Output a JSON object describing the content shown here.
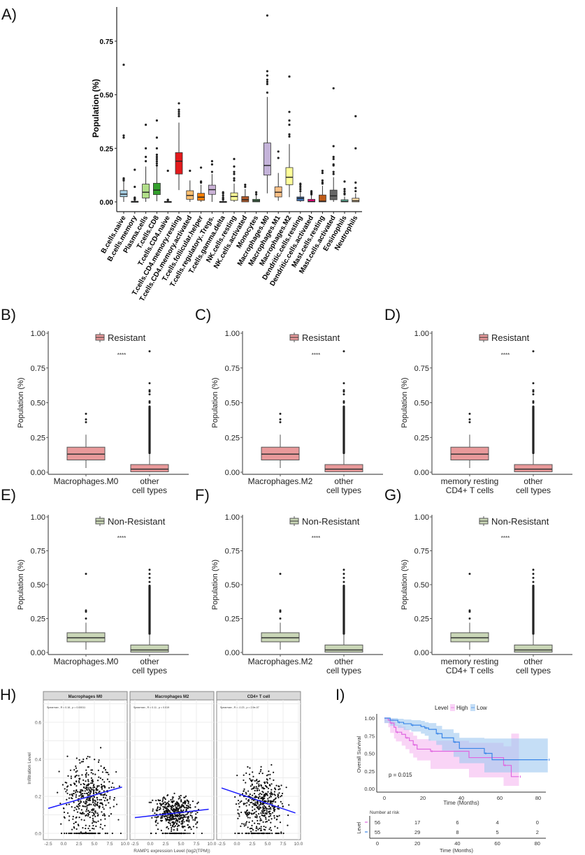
{
  "chart_data": [
    {
      "panel": "A)",
      "type": "box",
      "ylabel": "Population (%)",
      "yticks": [
        "0.00",
        "0.25",
        "0.50",
        "0.75"
      ],
      "ylim": [
        -0.04,
        0.9
      ],
      "categories": [
        {
          "name": "B.cells.naive",
          "color": "#a6cee3",
          "stats": [
            0,
            0.024,
            0.036,
            0.053,
            0.095
          ],
          "outliers": [
            0.64,
            0.31,
            0.3,
            0.11,
            0.105,
            0.1
          ]
        },
        {
          "name": "B.cells.memory",
          "color": "#1f78b4",
          "stats": [
            0,
            0,
            0,
            0.003,
            0.007
          ],
          "outliers": [
            0.15,
            0.07,
            0.02,
            0.018,
            0.015,
            0.01
          ]
        },
        {
          "name": "Plasma.cells",
          "color": "#b2df8a",
          "stats": [
            0,
            0.018,
            0.045,
            0.083,
            0.165
          ],
          "outliers": [
            0.36,
            0.25,
            0.21,
            0.19
          ]
        },
        {
          "name": "T.cells.CD8",
          "color": "#33a02c",
          "stats": [
            0.003,
            0.034,
            0.055,
            0.087,
            0.165
          ],
          "outliers": [
            0.38,
            0.3,
            0.25,
            0.22,
            0.21,
            0.2,
            0.19,
            0.18,
            0.17
          ]
        },
        {
          "name": "T.cells.CD4.naive",
          "color": "#fb9a99",
          "stats": [
            0,
            0,
            0,
            0.002,
            0.004
          ],
          "outliers": [
            0.145,
            0.01,
            0.008
          ]
        },
        {
          "name": "T.cells.CD4.memory.resting",
          "color": "#e31a1c",
          "stats": [
            0.055,
            0.13,
            0.19,
            0.23,
            0.37
          ],
          "outliers": [
            0.46,
            0.43,
            0.42,
            0.41,
            0.4
          ]
        },
        {
          "name": "T.cells.CD4.memory.activated",
          "color": "#fdbf6f",
          "stats": [
            0,
            0.012,
            0.03,
            0.052,
            0.1
          ],
          "outliers": [
            0.145
          ]
        },
        {
          "name": "T.cells.follicular.helper",
          "color": "#ff7f00",
          "stats": [
            0,
            0.007,
            0.022,
            0.04,
            0.08
          ],
          "outliers": [
            0.16,
            0.095,
            0.09
          ]
        },
        {
          "name": "T.cells.regulatory..Tregs.",
          "color": "#cab2d6",
          "stats": [
            0,
            0.035,
            0.057,
            0.078,
            0.13
          ],
          "outliers": [
            0.19,
            0.175,
            0.14
          ]
        },
        {
          "name": "T.cells.gamma.delta",
          "color": "#6a3d9a",
          "stats": [
            0,
            0,
            0,
            0.002,
            0.005
          ],
          "outliers": [
            0.045,
            0.04,
            0.03,
            0.02,
            0.015,
            0.01
          ]
        },
        {
          "name": "NK.cells.resting",
          "color": "#ffff99",
          "stats": [
            0,
            0.007,
            0.025,
            0.042,
            0.085
          ],
          "outliers": [
            0.2,
            0.165,
            0.14,
            0.13,
            0.11,
            0.1
          ]
        },
        {
          "name": "NK.cells.activated",
          "color": "#b15928",
          "stats": [
            0,
            0,
            0.01,
            0.025,
            0.06
          ],
          "outliers": [
            0.08,
            0.07
          ]
        },
        {
          "name": "Monocytes",
          "color": "#4f8f5a",
          "stats": [
            0,
            0,
            0.005,
            0.012,
            0.03
          ],
          "outliers": [
            0.045,
            0.035
          ]
        },
        {
          "name": "Macrophages.M0",
          "color": "#c4b3d9",
          "stats": [
            0.04,
            0.125,
            0.17,
            0.275,
            0.49
          ],
          "outliers": [
            0.87,
            0.61,
            0.59,
            0.57,
            0.56,
            0.55,
            0.51
          ]
        },
        {
          "name": "Macrophages.M1",
          "color": "#fdc086",
          "stats": [
            0.005,
            0.023,
            0.045,
            0.07,
            0.135
          ],
          "outliers": [
            0.235,
            0.205
          ]
        },
        {
          "name": "Macrophages.M2",
          "color": "#ffff99",
          "stats": [
            0.022,
            0.08,
            0.115,
            0.16,
            0.27
          ],
          "outliers": [
            0.585,
            0.42,
            0.38,
            0.36,
            0.315,
            0.305
          ]
        },
        {
          "name": "Dendritic.cells.resting",
          "color": "#386cb0",
          "stats": [
            0,
            0.005,
            0.017,
            0.023,
            0.045
          ],
          "outliers": [
            0.085,
            0.08,
            0.07,
            0.06,
            0.05
          ]
        },
        {
          "name": "Dendritic.cells.activated",
          "color": "#f0027f",
          "stats": [
            0,
            0,
            0.002,
            0.012,
            0.03
          ],
          "outliers": [
            0.05,
            0.045,
            0.04,
            0.035
          ]
        },
        {
          "name": "Mast.cells.resting",
          "color": "#bf5b17",
          "stats": [
            0,
            0,
            0.003,
            0.032,
            0.075
          ],
          "outliers": [
            0.145,
            0.135,
            0.1,
            0.09,
            0.085
          ]
        },
        {
          "name": "Mast.cells.activated",
          "color": "#666666",
          "stats": [
            0,
            0.01,
            0.028,
            0.055,
            0.115
          ],
          "outliers": [
            0.53,
            0.26,
            0.21,
            0.2,
            0.175,
            0.17,
            0.14,
            0.13
          ]
        },
        {
          "name": "Eosinophils",
          "color": "#66c2a5",
          "stats": [
            0,
            0,
            0.002,
            0.01,
            0.025
          ],
          "outliers": [
            0.095,
            0.06,
            0.05,
            0.04,
            0.035
          ]
        },
        {
          "name": "Neutrophils",
          "color": "#fdd9a6",
          "stats": [
            0,
            0,
            0.005,
            0.017,
            0.04
          ],
          "outliers": [
            0.4,
            0.25,
            0.09,
            0.065,
            0.05
          ]
        }
      ]
    },
    {
      "panel": "B)",
      "type": "box",
      "legend": "Resistant",
      "color": "#e8999a",
      "ylabel": "Population (%)",
      "yticks": [
        "0.00",
        "0.25",
        "0.50",
        "0.75",
        "1.00"
      ],
      "annotation": "****",
      "groups": [
        {
          "label": [
            "Macrophages.M0"
          ],
          "stats": [
            0.03,
            0.088,
            0.13,
            0.18,
            0.27
          ],
          "outliers": [
            0.42,
            0.38,
            0.36
          ]
        },
        {
          "label": [
            "other",
            "cell types"
          ],
          "stats": [
            0,
            0.003,
            0.022,
            0.055,
            0.13
          ],
          "dense_outliers": [
            0.13,
            0.48
          ],
          "outliers": [
            0.87,
            0.64,
            0.59,
            0.58,
            0.56,
            0.51,
            0.5
          ]
        }
      ]
    },
    {
      "panel": "C)",
      "type": "box",
      "legend": "Resistant",
      "color": "#e8999a",
      "ylabel": "Population (%)",
      "yticks": [
        "0.00",
        "0.25",
        "0.50",
        "0.75",
        "1.00"
      ],
      "annotation": "****",
      "groups": [
        {
          "label": [
            "Macrophages.M2"
          ],
          "stats": [
            0.03,
            0.088,
            0.13,
            0.18,
            0.27
          ],
          "outliers": [
            0.42,
            0.38,
            0.36
          ]
        },
        {
          "label": [
            "other",
            "cell types"
          ],
          "stats": [
            0,
            0.003,
            0.022,
            0.055,
            0.13
          ],
          "dense_outliers": [
            0.13,
            0.48
          ],
          "outliers": [
            0.87,
            0.64,
            0.59,
            0.58,
            0.56,
            0.51,
            0.5
          ]
        }
      ]
    },
    {
      "panel": "D)",
      "type": "box",
      "legend": "Resistant",
      "color": "#e8999a",
      "ylabel": "Population (%)",
      "yticks": [
        "0.00",
        "0.25",
        "0.50",
        "0.75",
        "1.00"
      ],
      "annotation": "****",
      "groups": [
        {
          "label": [
            "memory resting",
            "CD4+ T cells"
          ],
          "stats": [
            0.03,
            0.088,
            0.13,
            0.18,
            0.27
          ],
          "outliers": [
            0.42,
            0.38,
            0.36
          ]
        },
        {
          "label": [
            "other",
            "cell types"
          ],
          "stats": [
            0,
            0.003,
            0.022,
            0.055,
            0.13
          ],
          "dense_outliers": [
            0.13,
            0.48
          ],
          "outliers": [
            0.87,
            0.64,
            0.59,
            0.58,
            0.56,
            0.51,
            0.5
          ]
        }
      ]
    },
    {
      "panel": "E)",
      "type": "box",
      "legend": "Non-Resistant",
      "color": "#c9d6b6",
      "ylabel": "Population (%)",
      "yticks": [
        "0.00",
        "0.25",
        "0.50",
        "0.75",
        "1.00"
      ],
      "annotation": "****",
      "groups": [
        {
          "label": [
            "Macrophages.M0"
          ],
          "stats": [
            0.02,
            0.078,
            0.108,
            0.145,
            0.22
          ],
          "outliers": [
            0.58,
            0.31,
            0.3,
            0.25
          ]
        },
        {
          "label": [
            "other",
            "cell types"
          ],
          "stats": [
            0,
            0.002,
            0.018,
            0.055,
            0.13
          ],
          "dense_outliers": [
            0.13,
            0.5
          ],
          "outliers": [
            0.61,
            0.58,
            0.55,
            0.52
          ]
        }
      ]
    },
    {
      "panel": "F)",
      "type": "box",
      "legend": "Non-Resistant",
      "color": "#c9d6b6",
      "ylabel": "Population (%)",
      "yticks": [
        "0.00",
        "0.25",
        "0.50",
        "0.75",
        "1.00"
      ],
      "annotation": "****",
      "groups": [
        {
          "label": [
            "Macrophages.M2"
          ],
          "stats": [
            0.02,
            0.078,
            0.108,
            0.145,
            0.22
          ],
          "outliers": [
            0.58,
            0.31,
            0.3,
            0.25
          ]
        },
        {
          "label": [
            "other",
            "cell types"
          ],
          "stats": [
            0,
            0.002,
            0.018,
            0.055,
            0.13
          ],
          "dense_outliers": [
            0.13,
            0.5
          ],
          "outliers": [
            0.61,
            0.58,
            0.55,
            0.52
          ]
        }
      ]
    },
    {
      "panel": "G)",
      "type": "box",
      "legend": "Non-Resistant",
      "color": "#c9d6b6",
      "ylabel": "Population (%)",
      "yticks": [
        "0.00",
        "0.25",
        "0.50",
        "0.75",
        "1.00"
      ],
      "annotation": "****",
      "groups": [
        {
          "label": [
            "memory resting",
            "CD4+ T cells"
          ],
          "stats": [
            0.02,
            0.078,
            0.108,
            0.145,
            0.22
          ],
          "outliers": [
            0.58,
            0.31,
            0.3,
            0.25
          ]
        },
        {
          "label": [
            "other",
            "cell types"
          ],
          "stats": [
            0,
            0.002,
            0.018,
            0.055,
            0.13
          ],
          "dense_outliers": [
            0.13,
            0.5
          ],
          "outliers": [
            0.61,
            0.58,
            0.55,
            0.52
          ]
        }
      ]
    },
    {
      "panel": "H)",
      "type": "scatter",
      "ylabel": "Infiltration Level",
      "xlabel": "RAMP1 expression Level (log2(TPM))",
      "yticks": [
        "0.0",
        "0.2",
        "0.4",
        "0.6"
      ],
      "xticks": [
        "-2.5",
        "0.0",
        "2.5",
        "5.0",
        "7.5",
        "10.0"
      ],
      "xlim": [
        -3,
        10.5
      ],
      "ylim": [
        -0.03,
        0.72
      ],
      "facets": [
        {
          "title": "Macrophages M0",
          "stat": "Spearman , R = 0.16 , p = 0.00011",
          "fit": [
            [
              -2.5,
              0.135
            ],
            [
              9.5,
              0.25
            ]
          ],
          "center": [
            4,
            0.19
          ],
          "spread": [
            2.6,
            0.12
          ],
          "n": 480
        },
        {
          "title": "Macrophages M2",
          "stat": "Spearman , R = 0.11 , p = 0.019",
          "fit": [
            [
              -2.5,
              0.085
            ],
            [
              9.5,
              0.13
            ]
          ],
          "center": [
            4,
            0.11
          ],
          "spread": [
            2.4,
            0.06
          ],
          "n": 480
        },
        {
          "title": "CD4+ T cell",
          "stat": "Spearman , R = -0.23 , p = 2.9e-07",
          "fit": [
            [
              -2.5,
              0.245
            ],
            [
              9.5,
              0.11
            ]
          ],
          "center": [
            4,
            0.17
          ],
          "spread": [
            2.6,
            0.1
          ],
          "n": 480
        }
      ]
    },
    {
      "panel": "I)",
      "type": "line",
      "ylabel": "Overall Survival",
      "xlabel": "Time (Months)",
      "legend_title": "Level",
      "yticks": [
        "0.00",
        "0.25",
        "0.50",
        "0.75",
        "1.00"
      ],
      "xticks": [
        "0",
        "20",
        "40",
        "60",
        "80"
      ],
      "xlim": [
        -4,
        84
      ],
      "pvalue": "p = 0.015",
      "series": [
        {
          "name": "High",
          "color": "#e066e0",
          "band": "#f5b8f0",
          "t": [
            0,
            2,
            3,
            5,
            6,
            9,
            11,
            13,
            15,
            17,
            24,
            44,
            62,
            66,
            70
          ],
          "s": [
            1,
            0.97,
            0.93,
            0.87,
            0.8,
            0.77,
            0.72,
            0.68,
            0.62,
            0.56,
            0.53,
            0.44,
            0.33,
            0.17,
            0.17
          ],
          "lo": [
            1,
            0.93,
            0.87,
            0.79,
            0.71,
            0.67,
            0.61,
            0.56,
            0.5,
            0.44,
            0.4,
            0.28,
            0.16,
            0.04,
            0.04
          ],
          "hi": [
            1,
            1,
            0.99,
            0.95,
            0.9,
            0.88,
            0.84,
            0.8,
            0.75,
            0.7,
            0.68,
            0.65,
            0.6,
            0.78,
            0.78
          ]
        },
        {
          "name": "Low",
          "color": "#3a86e8",
          "band": "#9fc8f0",
          "t": [
            0,
            3,
            7,
            10,
            14,
            19,
            21,
            23,
            27,
            30,
            36,
            39,
            52,
            56,
            85
          ],
          "s": [
            1,
            0.97,
            0.94,
            0.92,
            0.9,
            0.88,
            0.86,
            0.84,
            0.78,
            0.72,
            0.66,
            0.57,
            0.5,
            0.41,
            0.41
          ],
          "lo": [
            1,
            0.93,
            0.89,
            0.86,
            0.83,
            0.81,
            0.78,
            0.75,
            0.68,
            0.62,
            0.54,
            0.45,
            0.36,
            0.23,
            0.23
          ],
          "hi": [
            1,
            1,
            0.99,
            0.98,
            0.97,
            0.96,
            0.94,
            0.93,
            0.89,
            0.84,
            0.79,
            0.72,
            0.71,
            0.71,
            0.71
          ]
        }
      ],
      "risk_table": {
        "title": "Number at risk",
        "row_label": "Level",
        "xlabel": "Time (Months)",
        "xticks": [
          "0",
          "20",
          "40",
          "60",
          "80"
        ],
        "rows": [
          {
            "name": "High",
            "values": [
              "56",
              "17",
              "6",
              "4",
              "0"
            ]
          },
          {
            "name": "Low",
            "values": [
              "55",
              "29",
              "8",
              "5",
              "2"
            ]
          }
        ]
      }
    }
  ]
}
